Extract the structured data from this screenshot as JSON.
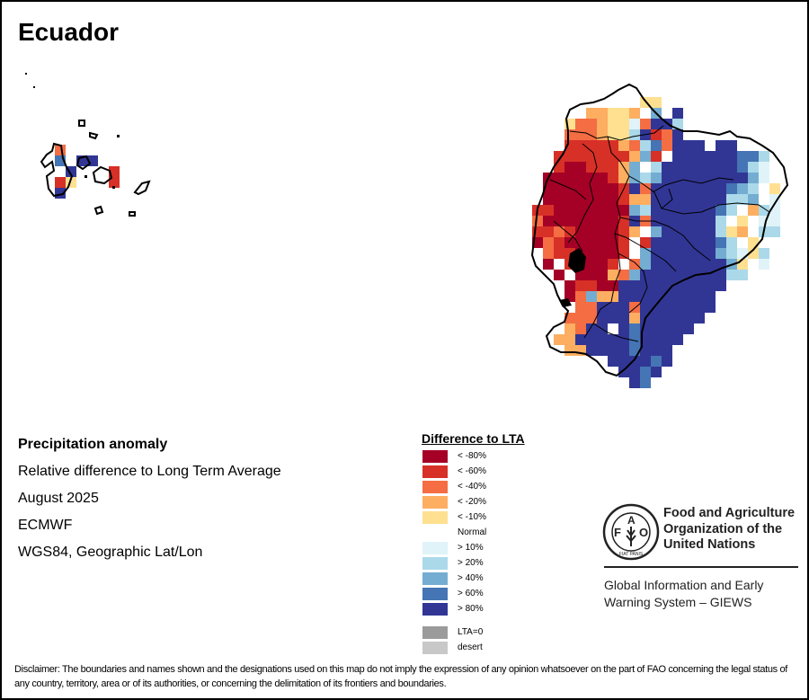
{
  "title": "Ecuador",
  "info": {
    "heading": "Precipitation anomaly",
    "subtitle": "Relative difference to Long Term Average",
    "period": "August 2025",
    "source": "ECMWF",
    "projection": "WGS84, Geographic Lat/Lon"
  },
  "legend": {
    "title": "Difference to LTA",
    "items": [
      {
        "code": "A",
        "label": "< -80%",
        "color": "#a50026"
      },
      {
        "code": "B",
        "label": "< -60%",
        "color": "#d73027"
      },
      {
        "code": "C",
        "label": "< -40%",
        "color": "#f46d43"
      },
      {
        "code": "D",
        "label": "< -20%",
        "color": "#fdae61"
      },
      {
        "code": "E",
        "label": "< -10%",
        "color": "#fee090"
      },
      {
        "code": "N",
        "label": "Normal",
        "color": "#ffffff"
      },
      {
        "code": "F",
        "label": "> 10%",
        "color": "#e0f3f8"
      },
      {
        "code": "G",
        "label": "> 20%",
        "color": "#abd9e9"
      },
      {
        "code": "H",
        "label": "> 40%",
        "color": "#74add1"
      },
      {
        "code": "I",
        "label": "> 60%",
        "color": "#4575b4"
      },
      {
        "code": "J",
        "label": "> 80%",
        "color": "#313695"
      }
    ],
    "extra": [
      {
        "code": "Z",
        "label": "LTA=0",
        "color": "#9b9b9b"
      },
      {
        "code": "S",
        "label": "desert",
        "color": "#c8c8c8"
      }
    ]
  },
  "organization": {
    "logo_icon": "fao-logo-icon",
    "logo_letters": [
      "F",
      "A",
      "O"
    ],
    "logo_motto": "FIAT PANIS",
    "name_lines": [
      "Food and Agriculture",
      "Organization of the",
      "United Nations"
    ],
    "system_lines": [
      "Global Information and Early",
      "Warning System – GIEWS"
    ]
  },
  "disclaimer": "Disclaimer: The boundaries and names shown and the designations used on this map do not imply the expression of any opinion whatsoever on the part of FAO concerning the legal status of any country, territory, area or of its authorities, or concerning the delimitation of its frontiers and boundaries.",
  "map_data": {
    "mainland_grid": [
      "........................",
      ".........NEE............",
      ".....DDEEDNH.J..........",
      "...ECCDEEFCJJG..........",
      "...CCCDEEGJBCJ..........",
      "...BBBBBDCGICJJJ.JJ.....",
      "..BBBBBBBDHBNJJJJJJIIG..",
      "..BAABBBDHNGJJJJJJJIGF..",
      ".AAAAAABDHGHJJJJJJJJHF..",
      ".AAAAAAABJCJJJJJJJIHGNE.",
      ".AAAAAAABDDJJJJJJJGGHNF.",
      "BBAAAAAAAHGJJJJJJIGNDGF.",
      "CAAAAAAABJCJJJJJJGNENFF.",
      "BBCBAAAABDNHJJJJJGEDNGG.",
      "ACBAAAAABNBJJJJJJIGNENN.",
      ".CBBAAAABNHJJJJJJHGFEG..",
      ".ANBAAABNCHJJJJJJJHENF..",
      "..ANAAADCHJJJJJJJJGG....",
      "..NABBAAJJJJJJJJJJ......",
      "...ACHDDJJJJJJJJJ.......",
      "....CCJJJCJJJJJJJ.......",
      "...CCCJJJDJJJJJJ........",
      "...DCJJNJIJJJJJ.........",
      "..DDJJJJJIJJJJ..........",
      "...DDJJJJIJJJ...........",
      ".......JJJJIJ...........",
      "........JJIJ............",
      ".........JI............."
    ],
    "galapagos_cells": [
      [
        "C",
        0,
        0
      ],
      [
        "I",
        0,
        1
      ],
      [
        "J",
        1,
        2
      ],
      [
        "B",
        0,
        3
      ],
      [
        "E",
        1,
        3
      ],
      [
        "J",
        0,
        4
      ],
      [
        "J",
        2,
        1
      ],
      [
        "J",
        3,
        1
      ],
      [
        "B",
        5,
        2
      ],
      [
        "B",
        5,
        3
      ]
    ]
  }
}
